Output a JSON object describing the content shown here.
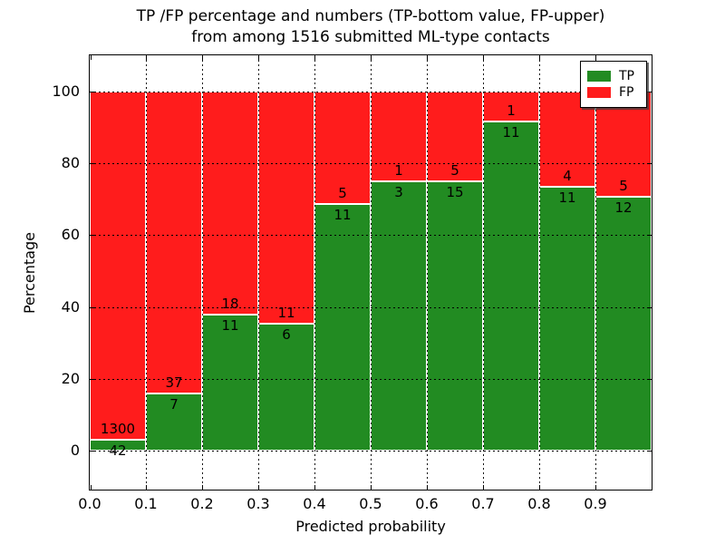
{
  "figure": {
    "title_line1": "TP /FP percentage and numbers (TP-bottom value, FP-upper)",
    "title_line2": "from among 1516 submitted ML-type contacts"
  },
  "chart_data": {
    "type": "bar",
    "subtype": "stacked-percentage",
    "title": "TP /FP percentage and numbers (TP-bottom value, FP-upper)\nfrom among 1516 submitted ML-type contacts",
    "xlabel": "Predicted probability",
    "ylabel": "Percentage",
    "total_contacts": 1516,
    "categories": [
      "0.0-0.1",
      "0.1-0.2",
      "0.2-0.3",
      "0.3-0.4",
      "0.4-0.5",
      "0.5-0.6",
      "0.6-0.7",
      "0.7-0.8",
      "0.8-0.9",
      "0.9-1.0"
    ],
    "xtick_labels": [
      "0.0",
      "0.1",
      "0.2",
      "0.3",
      "0.4",
      "0.5",
      "0.6",
      "0.7",
      "0.8",
      "0.9"
    ],
    "ytick_values": [
      0,
      20,
      40,
      60,
      80,
      100
    ],
    "xlim": [
      0.0,
      1.0
    ],
    "ylim": [
      -10.8,
      110
    ],
    "grid": true,
    "grid_style": "dotted",
    "legend_position": "upper right",
    "series": [
      {
        "name": "TP",
        "color": "#228b22",
        "counts": [
          42,
          7,
          11,
          6,
          11,
          3,
          15,
          11,
          11,
          12
        ]
      },
      {
        "name": "FP",
        "color": "#ff1c1c",
        "counts": [
          1300,
          37,
          18,
          11,
          5,
          1,
          5,
          1,
          4,
          5
        ]
      }
    ],
    "tp_percentages": [
      3.1,
      15.9,
      37.9,
      35.3,
      68.8,
      75.0,
      75.0,
      91.7,
      73.3,
      70.6
    ]
  },
  "colors": {
    "tp": "#228b22",
    "fp": "#ff1c1c",
    "grid": "#000000",
    "background": "#ffffff",
    "legend_shadow": "#3c3c3c"
  }
}
